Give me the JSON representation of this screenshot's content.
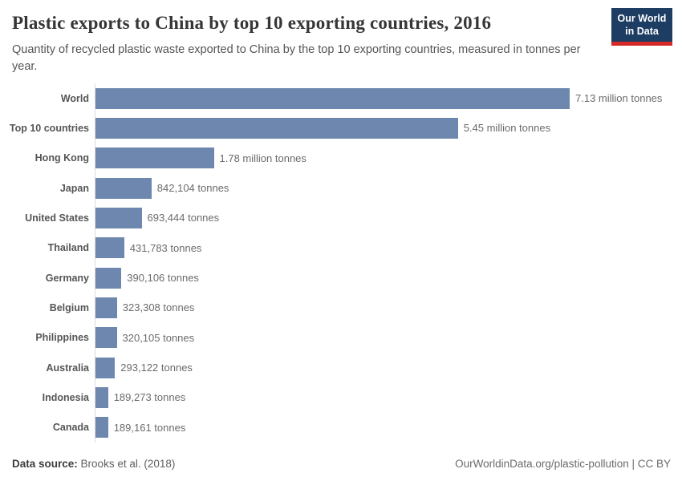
{
  "header": {
    "title": "Plastic exports to China by top 10 exporting countries, 2016",
    "subtitle": "Quantity of recycled plastic waste exported to China by the top 10 exporting countries, measured in tonnes per year."
  },
  "logo": {
    "line1": "Our World",
    "line2": "in Data",
    "bg_color": "#1d3d63",
    "accent_color": "#d62a28"
  },
  "chart_data": {
    "type": "bar",
    "orientation": "horizontal",
    "title": "Plastic exports to China by top 10 exporting countries, 2016",
    "unit": "tonnes",
    "xlim": [
      0,
      7130000
    ],
    "grid": false,
    "legend": "none",
    "bar_color": "#6e87af",
    "categories": [
      "World",
      "Top 10 countries",
      "Hong Kong",
      "Japan",
      "United States",
      "Thailand",
      "Germany",
      "Belgium",
      "Philippines",
      "Australia",
      "Indonesia",
      "Canada"
    ],
    "values": [
      7130000,
      5450000,
      1780000,
      842104,
      693444,
      431783,
      390106,
      323308,
      320105,
      293122,
      189273,
      189161
    ],
    "value_labels": [
      "7.13 million tonnes",
      "5.45 million tonnes",
      "1.78 million tonnes",
      "842,104 tonnes",
      "693,444 tonnes",
      "431,783 tonnes",
      "390,106 tonnes",
      "323,308 tonnes",
      "320,105 tonnes",
      "293,122 tonnes",
      "189,273 tonnes",
      "189,161 tonnes"
    ]
  },
  "footer": {
    "source_label": "Data source:",
    "source_text": "Brooks et al. (2018)",
    "right_text": "OurWorldinData.org/plastic-pollution | CC BY"
  }
}
